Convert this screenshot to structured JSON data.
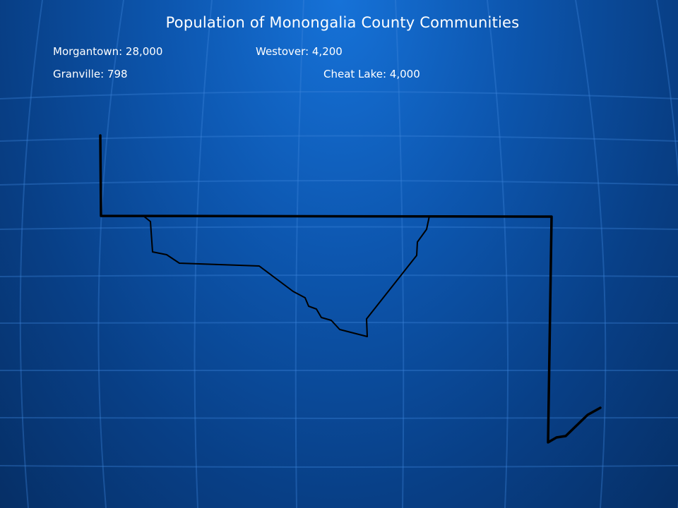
{
  "title": "Population of Monongalia County Communities",
  "populations": {
    "morgantown": "Morgantown: 28,000",
    "westover": "Westover: 4,200",
    "granville": "Granville: 798",
    "cheat_lake": "Cheat Lake: 4,000"
  },
  "colors": {
    "background": "#0b4ea2",
    "text": "#ffffff",
    "county_outline": "#000000"
  }
}
